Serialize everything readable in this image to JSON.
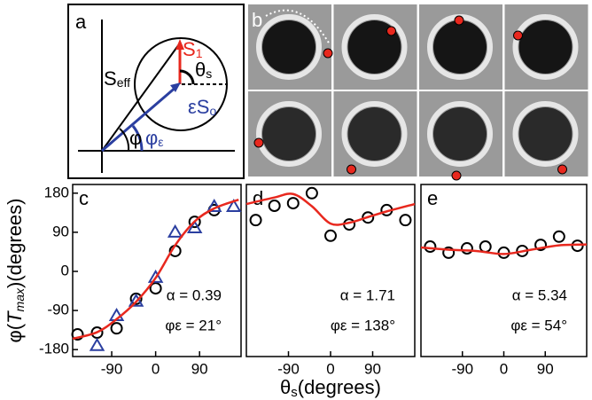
{
  "panel_a": {
    "label": "a",
    "labels": [
      {
        "main": "S",
        "sub": "1"
      },
      {
        "main": "S",
        "sub": "eff"
      },
      {
        "main": "θ",
        "sub": "s"
      },
      {
        "main": "εS",
        "sub": "o"
      },
      {
        "main": "φ",
        "sub": ""
      },
      {
        "main": "φ",
        "sub": "ε"
      }
    ]
  },
  "panel_b": {
    "label": "b"
  },
  "chart_data": [
    {
      "type": "scatter",
      "label": "c",
      "annotations": [
        "α = 0.39",
        "φε = 21°"
      ],
      "ylabel": [
        "φ(",
        "T",
        "max",
        ")(degrees)"
      ],
      "xlim": [
        -170,
        175
      ],
      "xticks": [
        -90,
        0,
        90
      ],
      "ylim": [
        -196,
        200
      ],
      "yticks": [
        180,
        90,
        0,
        -90,
        -180
      ],
      "series": [
        {
          "marker": "circle",
          "color": "#000000",
          "x": [
            -160,
            -120,
            -80,
            -40,
            0,
            40,
            80,
            120
          ],
          "values": [
            -145,
            -141,
            -131,
            -63,
            -39,
            47,
            114,
            141
          ]
        },
        {
          "marker": "triangle",
          "color": "#2b3fa0",
          "x": [
            -120,
            -80,
            -40,
            0,
            40,
            80,
            120,
            160
          ],
          "values": [
            -171,
            -102,
            -69,
            -14,
            90,
            100,
            149,
            149
          ]
        },
        {
          "marker": "line",
          "color": "#e8281e",
          "x": [
            -170,
            -120,
            -80,
            -40,
            0,
            40,
            80,
            120,
            170
          ],
          "values": [
            -155,
            -140,
            -110,
            -70,
            -15,
            60,
            115,
            145,
            165
          ]
        }
      ]
    },
    {
      "type": "scatter",
      "label": "d",
      "annotations": [
        "α = 1.71",
        "φε = 138°"
      ],
      "xlabel": [
        "θ",
        "s",
        "(degrees)"
      ],
      "xlim": [
        -180,
        180
      ],
      "xticks": [
        -90,
        0,
        90
      ],
      "ylim": [
        -196,
        200
      ],
      "series": [
        {
          "marker": "circle",
          "color": "#000000",
          "x": [
            -160,
            -120,
            -80,
            -40,
            0,
            40,
            80,
            120,
            160
          ],
          "values": [
            118,
            151,
            157,
            180,
            82,
            108,
            124,
            141,
            118
          ]
        },
        {
          "marker": "line",
          "color": "#e8281e",
          "x": [
            -180,
            -120,
            -80,
            -40,
            0,
            40,
            80,
            120,
            180
          ],
          "values": [
            155,
            170,
            178,
            150,
            110,
            112,
            125,
            138,
            155
          ]
        }
      ]
    },
    {
      "type": "scatter",
      "label": "e",
      "annotations": [
        "α = 5.34",
        "φε = 54°"
      ],
      "xlim": [
        -180,
        180
      ],
      "xticks": [
        -90,
        0,
        90
      ],
      "ylim": [
        -196,
        200
      ],
      "series": [
        {
          "marker": "circle",
          "color": "#000000",
          "x": [
            -160,
            -120,
            -80,
            -40,
            0,
            40,
            80,
            120,
            160
          ],
          "values": [
            57,
            43,
            53,
            57,
            43,
            47,
            61,
            80,
            59
          ]
        },
        {
          "marker": "line",
          "color": "#e8281e",
          "x": [
            -180,
            -120,
            -60,
            0,
            60,
            120,
            180
          ],
          "values": [
            55,
            50,
            47,
            40,
            50,
            60,
            62
          ]
        }
      ]
    }
  ]
}
